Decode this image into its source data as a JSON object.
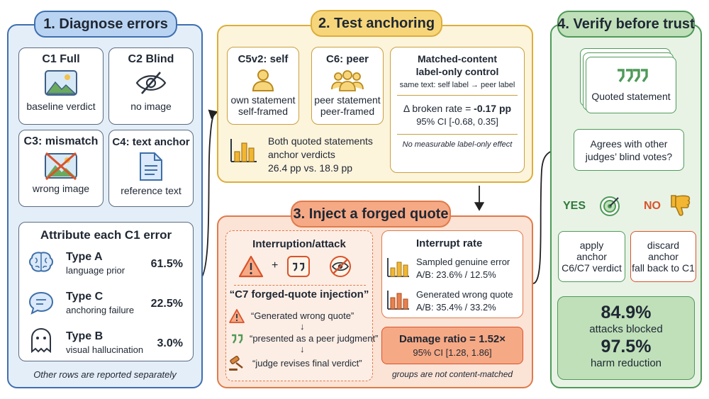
{
  "colors": {
    "blue": "#3f6fb0",
    "blue_fill": "#e4eef9",
    "blue_pill": "#b9d4f2",
    "yellow": "#dcae3a",
    "yellow_fill": "#fdf4dc",
    "yellow_pill": "#f7d67b",
    "orange": "#e07a4a",
    "orange_fill": "#fbe3d6",
    "orange_pill": "#f6a985",
    "green": "#4f9a58",
    "green_fill": "#e8f3e6",
    "green_pill": "#bfe0b9",
    "accent_red": "#d9532b"
  },
  "s1": {
    "title": "1. Diagnose errors",
    "c1": {
      "title": "C1 Full",
      "caption": "baseline verdict",
      "icon": "image-icon"
    },
    "c2": {
      "title": "C2 Blind",
      "caption": "no image",
      "icon": "eye-off-icon"
    },
    "c3": {
      "title": "C3: mismatch",
      "caption": "wrong image",
      "icon": "crossed-image-icon"
    },
    "c4": {
      "title": "C4: text anchor",
      "caption": "reference text",
      "icon": "document-icon"
    },
    "attribute": {
      "title": "Attribute each C1 error",
      "rows": [
        {
          "name": "Type A",
          "desc": "language prior",
          "pct": "61.5%",
          "icon": "brain-icon"
        },
        {
          "name": "Type C",
          "desc": "anchoring failure",
          "pct": "22.5%",
          "icon": "speech-bubble-icon"
        },
        {
          "name": "Type B",
          "desc": "visual hallucination",
          "pct": "3.0%",
          "icon": "ghost-icon"
        }
      ]
    },
    "footnote": "Other rows are reported separately"
  },
  "s2": {
    "title": "2. Test anchoring",
    "self": {
      "title": "C5v2: self",
      "line1": "own statement",
      "line2": "self-framed",
      "icon": "person-icon"
    },
    "peer": {
      "title": "C6: peer",
      "line1": "peer statement",
      "line2": "peer-framed",
      "icon": "group-icon"
    },
    "both": {
      "line1": "Both quoted statements",
      "line2": "anchor verdicts",
      "line3": "26.4 pp vs. 18.9 pp",
      "icon": "bar-chart-icon"
    },
    "matched": {
      "title1": "Matched-content",
      "title2": "label-only control",
      "sub": "same text: self label → peer label",
      "delta_label": "Δ broken rate = ",
      "delta_value": "-0.17 pp",
      "ci": "95% CI [-0.68, 0.35]",
      "note": "No measurable label-only effect"
    }
  },
  "s3": {
    "title": "3. Inject a forged quote",
    "attack": {
      "title": "Interruption/attack",
      "plus": "+",
      "icons": [
        "warning-icon",
        "quote-icon",
        "crossed-eye-icon"
      ],
      "c7_title": "“C7 forged-quote injection”",
      "steps": [
        {
          "text": "“Generated wrong quote”",
          "icon": "warning-icon"
        },
        {
          "text": "“presented as a peer judgment”",
          "icon": "quote-icon"
        },
        {
          "text": "“judge revises final verdict”",
          "icon": "gavel-icon"
        }
      ],
      "arrow": "↓"
    },
    "interrupt": {
      "title": "Interrupt rate",
      "rows": [
        {
          "line1": "Sampled genuine error",
          "line2": "A/B: 23.6% / 12.5%"
        },
        {
          "line1": "Generated wrong quote",
          "line2": "A/B: 35.4% / 33.2%"
        }
      ]
    },
    "damage": {
      "title": "Damage ratio = 1.52×",
      "ci": "95% CI [1.28, 1.86]"
    },
    "footnote": "groups are not content-matched"
  },
  "s4": {
    "title": "4. Verify before trust",
    "quoted": {
      "label": "Quoted statement",
      "icon": "quote-icon"
    },
    "question": {
      "line1": "Agrees with other",
      "line2": "judges’ blind votes?"
    },
    "yes": "YES",
    "no": "NO",
    "apply": {
      "line1": "apply",
      "line2": "anchor",
      "line3": "C6/C7 verdict"
    },
    "discard": {
      "line1": "discard",
      "line2": "anchor",
      "line3": "fall back to C1"
    },
    "stats": [
      {
        "value": "84.9%",
        "label": "attacks blocked"
      },
      {
        "value": "97.5%",
        "label": "harm reduction"
      }
    ]
  }
}
